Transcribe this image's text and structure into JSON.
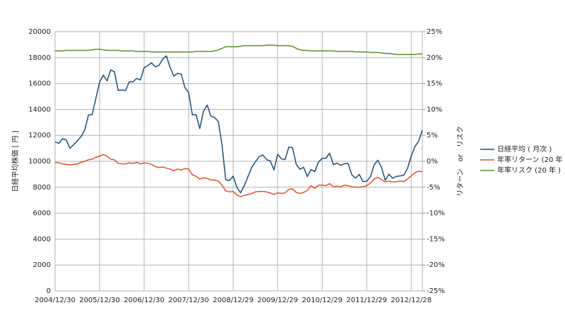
{
  "chart_data": {
    "type": "line",
    "categories": [
      "2004/12/30",
      null,
      null,
      null,
      null,
      null,
      null,
      null,
      null,
      null,
      null,
      null,
      "2005/12/30",
      null,
      null,
      null,
      null,
      null,
      null,
      null,
      null,
      null,
      null,
      null,
      "2006/12/30",
      null,
      null,
      null,
      null,
      null,
      null,
      null,
      null,
      null,
      null,
      null,
      "2007/12/30",
      null,
      null,
      null,
      null,
      null,
      null,
      null,
      null,
      null,
      null,
      null,
      "2008/12/29",
      null,
      null,
      null,
      null,
      null,
      null,
      null,
      null,
      null,
      null,
      null,
      "2009/12/29",
      null,
      null,
      null,
      null,
      null,
      null,
      null,
      null,
      null,
      null,
      null,
      "2010/12/29",
      null,
      null,
      null,
      null,
      null,
      null,
      null,
      null,
      null,
      null,
      null,
      "2011/12/29",
      null,
      null,
      null,
      null,
      null,
      null,
      null,
      null,
      null,
      null,
      null,
      "2012/12/28",
      null,
      null,
      null
    ],
    "y_label": "日経平均株価 [ 円 ]",
    "y2_label": "リターン　or　リスク",
    "ylim": [
      0,
      20000
    ],
    "yticks": [
      0,
      2000,
      4000,
      6000,
      8000,
      10000,
      12000,
      14000,
      16000,
      18000,
      20000
    ],
    "y2lim": [
      -25,
      25
    ],
    "y2ticks": [
      {
        "value": -25,
        "label": "-25%"
      },
      {
        "value": -20,
        "label": "-20%"
      },
      {
        "value": -15,
        "label": "-15%"
      },
      {
        "value": -10,
        "label": "-10%"
      },
      {
        "value": -5,
        "label": "-5%"
      },
      {
        "value": 0,
        "label": "0%"
      },
      {
        "value": 5,
        "label": "5%"
      },
      {
        "value": 10,
        "label": "10%"
      },
      {
        "value": 15,
        "label": "15%"
      },
      {
        "value": 20,
        "label": "20%"
      },
      {
        "value": 25,
        "label": "25%"
      }
    ],
    "grid": true,
    "legend": "right",
    "series": [
      {
        "name": "日経平均 ( 月次 )",
        "color": "#1c4f7c",
        "values": [
          11489,
          11388,
          11740,
          11668,
          11009,
          11277,
          11584,
          11900,
          12414,
          13574,
          13607,
          14872,
          16111,
          16650,
          16205,
          17060,
          16906,
          15467,
          15505,
          15457,
          16141,
          16128,
          16399,
          16274,
          17226,
          17383,
          17604,
          17288,
          17400,
          17876,
          18138,
          17249,
          16569,
          16786,
          16738,
          15681,
          15308,
          13592,
          13603,
          12526,
          13850,
          14339,
          13482,
          13377,
          13073,
          11260,
          8577,
          8512,
          8860,
          7994,
          7568,
          8110,
          8828,
          9523,
          9958,
          10357,
          10493,
          10133,
          10035,
          9345,
          10546,
          10198,
          10126,
          11090,
          11057,
          9769,
          9383,
          9537,
          8824,
          9369,
          9202,
          9937,
          10229,
          10238,
          10624,
          9755,
          9850,
          9694,
          9816,
          9833,
          8955,
          8700,
          8988,
          8435,
          8455,
          8803,
          9723,
          10084,
          9521,
          8543,
          9007,
          8695,
          8840,
          8870,
          8928,
          9446,
          10395,
          11139,
          11559,
          12398
        ]
      },
      {
        "name": "年率リターン (20 年 )",
        "color": "#e0502a",
        "axis": "y2",
        "values": [
          -0.2,
          -0.3,
          -0.5,
          -0.6,
          -0.7,
          -0.6,
          -0.5,
          -0.2,
          0,
          0.3,
          0.4,
          0.8,
          1.0,
          1.3,
          1.0,
          0.4,
          0.3,
          -0.4,
          -0.5,
          -0.5,
          -0.3,
          -0.4,
          -0.2,
          -0.5,
          -0.3,
          -0.4,
          -0.6,
          -1.0,
          -1.2,
          -1.1,
          -1.3,
          -1.5,
          -1.8,
          -1.5,
          -1.7,
          -1.4,
          -1.5,
          -2.6,
          -2.9,
          -3.4,
          -3.2,
          -3.3,
          -3.6,
          -3.6,
          -3.8,
          -4.6,
          -5.7,
          -5.9,
          -5.8,
          -6.5,
          -6.8,
          -6.6,
          -6.4,
          -6.2,
          -5.9,
          -5.8,
          -5.8,
          -5.9,
          -6.1,
          -6.4,
          -6.1,
          -6.2,
          -6.1,
          -5.4,
          -5.3,
          -6.0,
          -6.2,
          -6.0,
          -5.6,
          -4.7,
          -5.2,
          -4.6,
          -4.6,
          -4.7,
          -4.3,
          -4.9,
          -4.8,
          -4.9,
          -4.6,
          -4.7,
          -4.9,
          -5.0,
          -5.0,
          -4.9,
          -4.7,
          -4.2,
          -3.4,
          -3.1,
          -3.5,
          -4.0,
          -3.8,
          -4.0,
          -3.9,
          -3.8,
          -3.9,
          -3.4,
          -2.8,
          -2.2,
          -1.9,
          -2.0
        ]
      },
      {
        "name": "年率リスク (20 年 )",
        "color": "#5a8f29",
        "axis": "y2",
        "values": [
          21.3,
          21.3,
          21.3,
          21.4,
          21.4,
          21.4,
          21.4,
          21.4,
          21.4,
          21.4,
          21.5,
          21.6,
          21.6,
          21.5,
          21.4,
          21.4,
          21.4,
          21.4,
          21.3,
          21.3,
          21.3,
          21.3,
          21.2,
          21.2,
          21.2,
          21.2,
          21.1,
          21.1,
          21.1,
          21.1,
          21.1,
          21.1,
          21.1,
          21.1,
          21.1,
          21.1,
          21.1,
          21.1,
          21.2,
          21.2,
          21.2,
          21.2,
          21.2,
          21.3,
          21.5,
          21.8,
          22.1,
          22.1,
          22.1,
          22.1,
          22.2,
          22.3,
          22.3,
          22.3,
          22.3,
          22.3,
          22.3,
          22.4,
          22.4,
          22.4,
          22.3,
          22.3,
          22.3,
          22.3,
          22.2,
          21.8,
          21.5,
          21.4,
          21.4,
          21.3,
          21.3,
          21.3,
          21.3,
          21.3,
          21.3,
          21.3,
          21.2,
          21.2,
          21.2,
          21.2,
          21.2,
          21.1,
          21.1,
          21.1,
          21.1,
          21.0,
          21.0,
          21.0,
          20.9,
          20.8,
          20.8,
          20.7,
          20.6,
          20.6,
          20.6,
          20.6,
          20.6,
          20.6,
          20.7,
          20.7
        ]
      }
    ]
  }
}
